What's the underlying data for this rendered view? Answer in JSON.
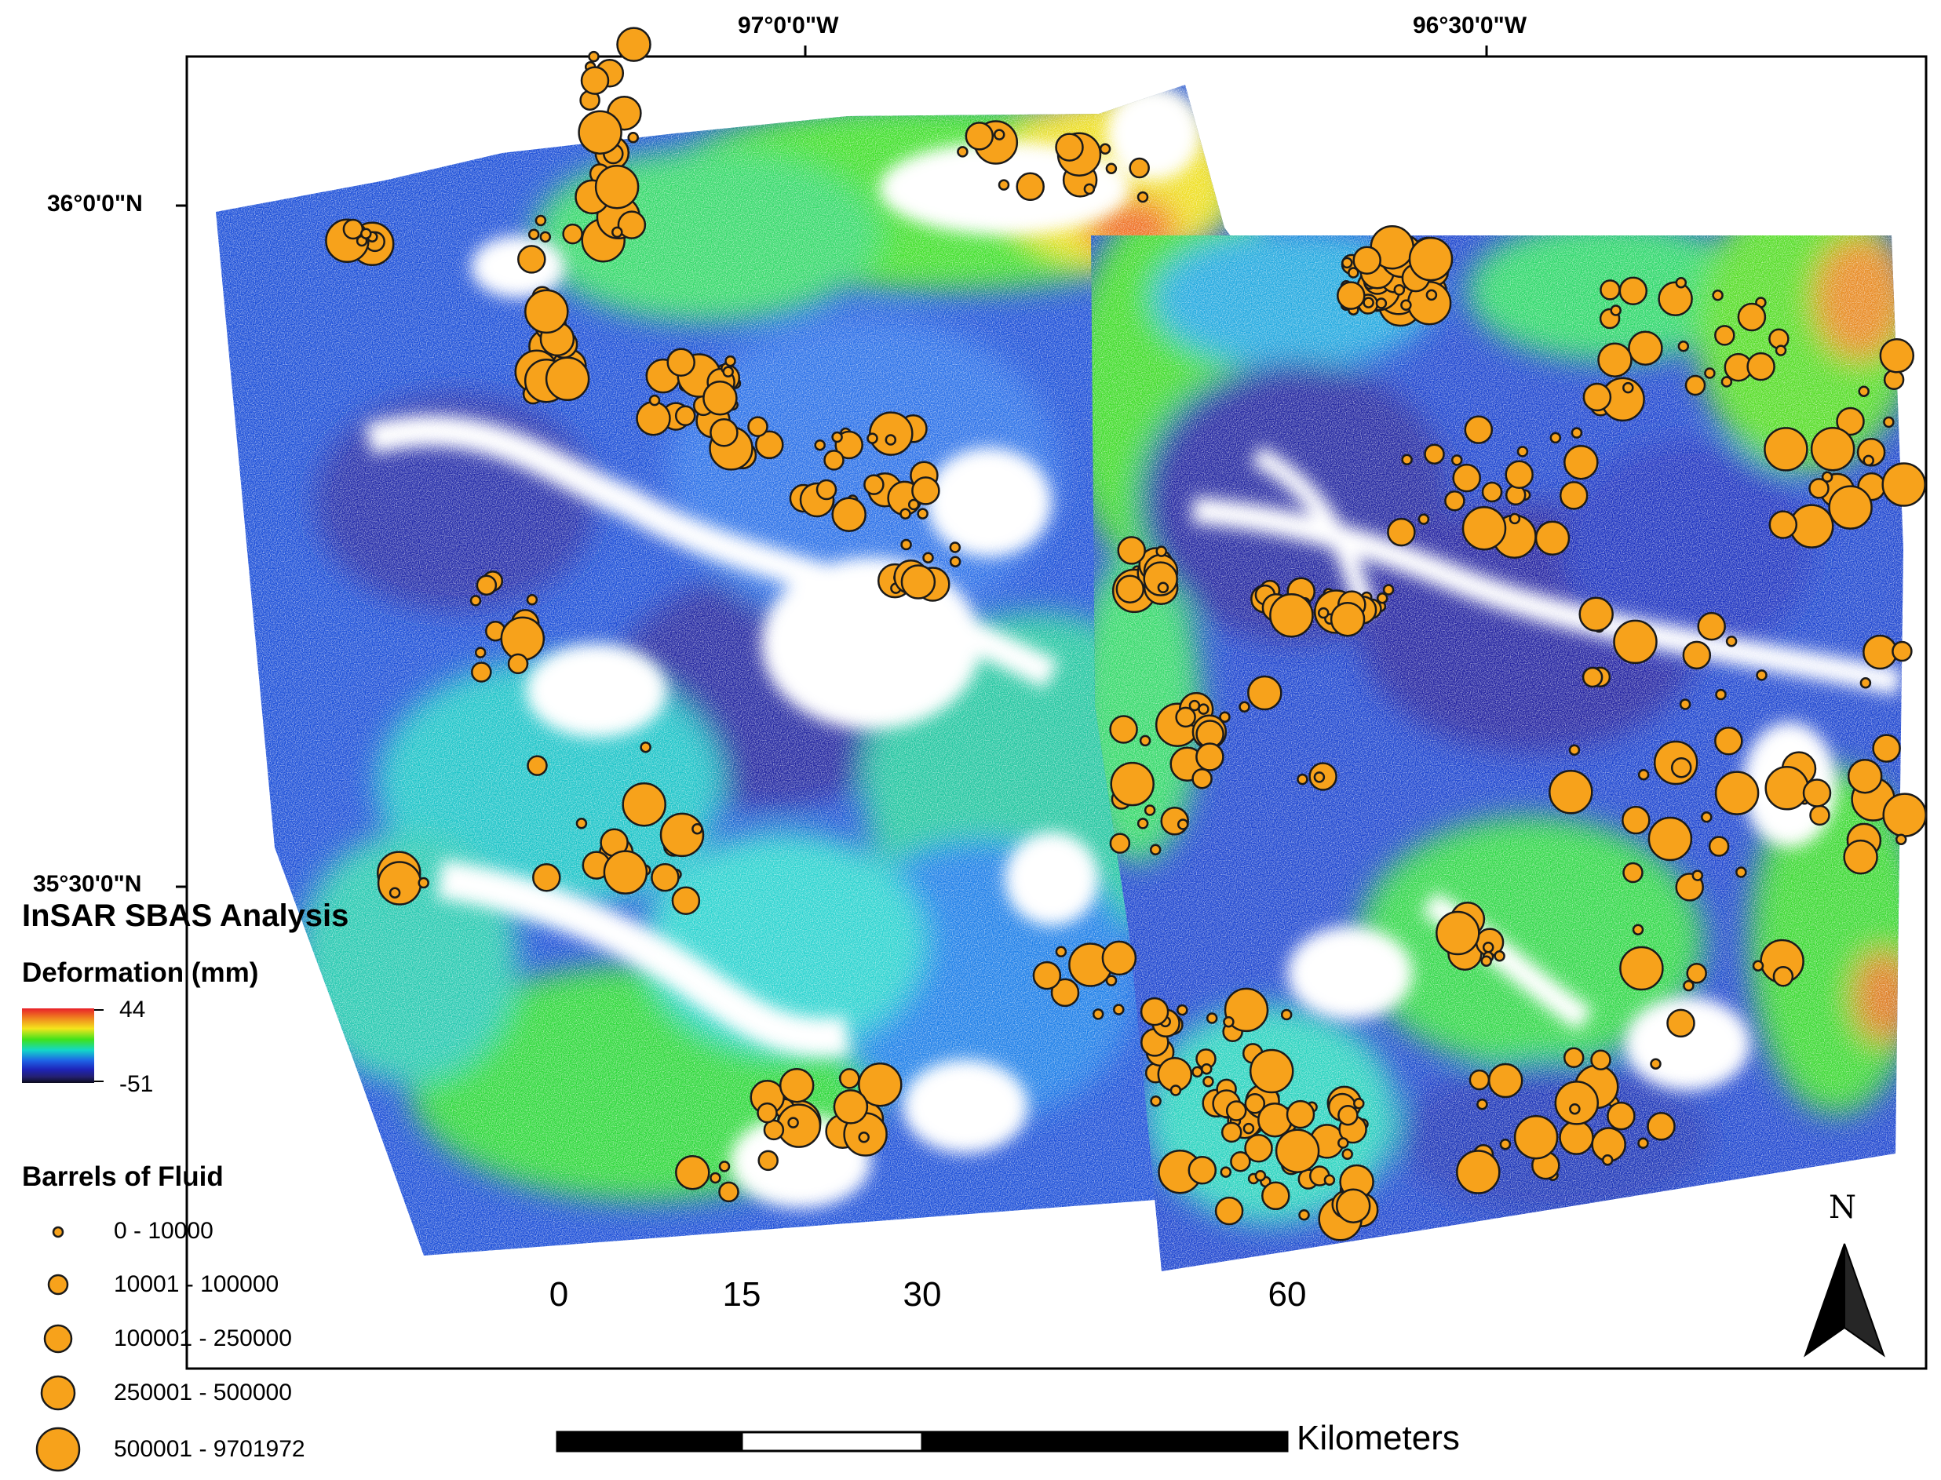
{
  "graticule": {
    "lon_labels": [
      "97°0'0\"W",
      "96°30'0\"W"
    ],
    "lat_labels": [
      "36°0'0\"N",
      "35°30'0\"N"
    ]
  },
  "legend": {
    "title": "InSAR SBAS Analysis",
    "deformation": {
      "label": "Deformation (mm)",
      "max": "44",
      "min": "-51",
      "ramp_colors": [
        "#e8202a",
        "#f08a1e",
        "#f4e51c",
        "#3ee21c",
        "#13d8c8",
        "#1e63e6",
        "#1e24b8",
        "#24206e",
        "#0b0b1e"
      ]
    },
    "fluid": {
      "label": "Barrels of Fluid",
      "classes": [
        "0 - 10000",
        "10001 - 100000",
        "100001 - 250000",
        "250001 - 500000",
        "500001 - 9701972"
      ]
    }
  },
  "scale_bar": {
    "ticks": [
      "0",
      "15",
      "30",
      "60"
    ],
    "unit": "Kilometers"
  },
  "north_arrow": {
    "label": "N"
  },
  "colors": {
    "well_fill": "#f7a21b",
    "well_stroke": "#1a1a1a",
    "frame": "#000000"
  }
}
